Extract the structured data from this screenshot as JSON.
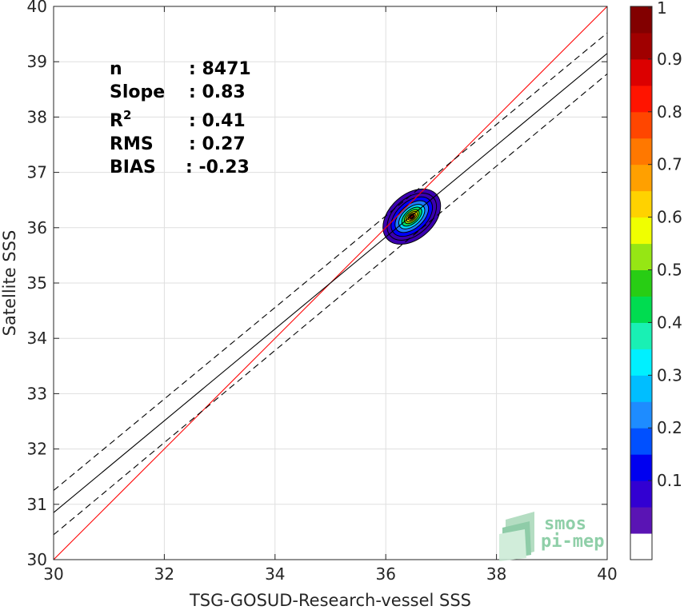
{
  "chart_data": {
    "type": "scatter",
    "subtype": "density-contour",
    "title": "",
    "xlabel": "TSG-GOSUD-Research-vessel SSS",
    "ylabel": "Satellite SSS",
    "xlim": [
      30,
      40
    ],
    "ylim": [
      30,
      40
    ],
    "xticks": [
      "30",
      "32",
      "34",
      "36",
      "38",
      "40"
    ],
    "yticks": [
      "30",
      "31",
      "32",
      "33",
      "34",
      "35",
      "36",
      "37",
      "38",
      "39",
      "40"
    ],
    "grid": true,
    "stats": [
      {
        "label": "n",
        "value": ": 8471"
      },
      {
        "label": "Slope",
        "value": ": 0.83"
      },
      {
        "label": "R",
        "sup": "2",
        "value": ": 0.41"
      },
      {
        "label": "RMS",
        "value": ": 0.27"
      },
      {
        "label": "BIAS",
        "value": ": -0.23"
      }
    ],
    "lines": [
      {
        "name": "1:1",
        "color": "#ff0000",
        "style": "solid",
        "x": [
          30,
          40
        ],
        "y": [
          30,
          40
        ]
      },
      {
        "name": "regression",
        "color": "#000000",
        "style": "solid",
        "x": [
          30,
          40
        ],
        "y": [
          30.85,
          39.15
        ]
      },
      {
        "name": "regression-upper",
        "color": "#000000",
        "style": "dashed",
        "x": [
          30,
          40
        ],
        "y": [
          31.25,
          39.52
        ]
      },
      {
        "name": "regression-lower",
        "color": "#000000",
        "style": "dashed",
        "x": [
          30,
          40
        ],
        "y": [
          30.45,
          38.78
        ]
      }
    ],
    "density_contours": {
      "center": [
        36.47,
        36.2
      ],
      "angle_deg": 42,
      "levels": [
        {
          "level": 0.05,
          "rx": 0.6,
          "ry": 0.4,
          "color": "#3a00b0"
        },
        {
          "level": 0.1,
          "rx": 0.52,
          "ry": 0.33,
          "color": "#3a00b0"
        },
        {
          "level": 0.15,
          "rx": 0.44,
          "ry": 0.27,
          "color": "#0000ff"
        },
        {
          "level": 0.25,
          "rx": 0.36,
          "ry": 0.21,
          "color": "#1e78ff"
        },
        {
          "level": 0.35,
          "rx": 0.28,
          "ry": 0.16,
          "color": "#00d7ff"
        },
        {
          "level": 0.45,
          "rx": 0.22,
          "ry": 0.12,
          "color": "#00dc64"
        },
        {
          "level": 0.55,
          "rx": 0.16,
          "ry": 0.09,
          "color": "#96e600"
        },
        {
          "level": 0.65,
          "rx": 0.12,
          "ry": 0.065,
          "color": "#ffe600"
        },
        {
          "level": 0.75,
          "rx": 0.08,
          "ry": 0.045,
          "color": "#ff9600"
        },
        {
          "level": 0.85,
          "rx": 0.05,
          "ry": 0.03,
          "color": "#ff3c00"
        },
        {
          "level": 0.95,
          "rx": 0.03,
          "ry": 0.016,
          "color": "#c80000"
        }
      ]
    },
    "colorbar": {
      "range": [
        0,
        1
      ],
      "ticks": [
        "0.1",
        "0.2",
        "0.3",
        "0.4",
        "0.5",
        "0.6",
        "0.7",
        "0.8",
        "0.9",
        "1"
      ],
      "bands": [
        "#ffffff",
        "#5a14b4",
        "#3200d2",
        "#0000f0",
        "#0050ff",
        "#1e8cff",
        "#00beff",
        "#00f0ff",
        "#19f0b4",
        "#00dc50",
        "#28cd14",
        "#96e614",
        "#f0ff00",
        "#ffd200",
        "#ffa000",
        "#ff7800",
        "#ff4600",
        "#ff1400",
        "#dc0000",
        "#a00000",
        "#820000"
      ]
    },
    "logo": {
      "line1": "smos",
      "line2": "pi-mep"
    }
  }
}
